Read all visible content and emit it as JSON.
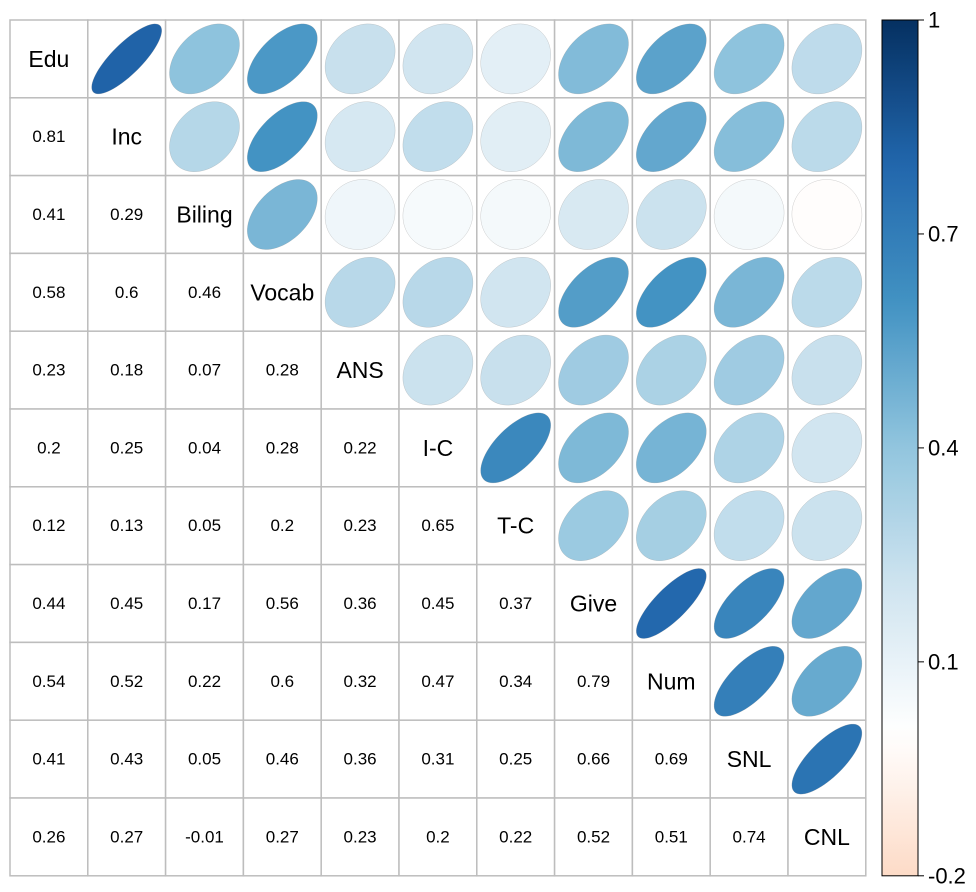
{
  "chart_data": {
    "type": "corrplot",
    "variables": [
      "Edu",
      "Inc",
      "Biling",
      "Vocab",
      "ANS",
      "I-C",
      "T-C",
      "Give",
      "Num",
      "SNL",
      "CNL"
    ],
    "values": [
      [
        0.81
      ],
      [
        0.41,
        0.29
      ],
      [
        0.58,
        0.6,
        0.46
      ],
      [
        0.23,
        0.18,
        0.07,
        0.28
      ],
      [
        0.2,
        0.25,
        0.04,
        0.28,
        0.22
      ],
      [
        0.12,
        0.13,
        0.05,
        0.2,
        0.23,
        0.65
      ],
      [
        0.44,
        0.45,
        0.17,
        0.56,
        0.36,
        0.45,
        0.37
      ],
      [
        0.54,
        0.52,
        0.22,
        0.6,
        0.32,
        0.47,
        0.34,
        0.79
      ],
      [
        0.41,
        0.43,
        0.05,
        0.46,
        0.36,
        0.31,
        0.25,
        0.66,
        0.69
      ],
      [
        0.26,
        0.27,
        -0.01,
        0.27,
        0.23,
        0.2,
        0.22,
        0.52,
        0.51,
        0.74
      ]
    ],
    "color_range": [
      -1,
      1
    ],
    "colors": [
      "#67001F",
      "#B2182B",
      "#D6604D",
      "#F4A582",
      "#FDDBC7",
      "#FFFFFF",
      "#D1E5F0",
      "#92C5DE",
      "#4393C3",
      "#2166AC",
      "#053061"
    ],
    "colorbar_lim": [
      -0.2,
      1
    ],
    "colorbar_ticks": [
      -0.2,
      0.1,
      0.4,
      0.7,
      1
    ]
  }
}
